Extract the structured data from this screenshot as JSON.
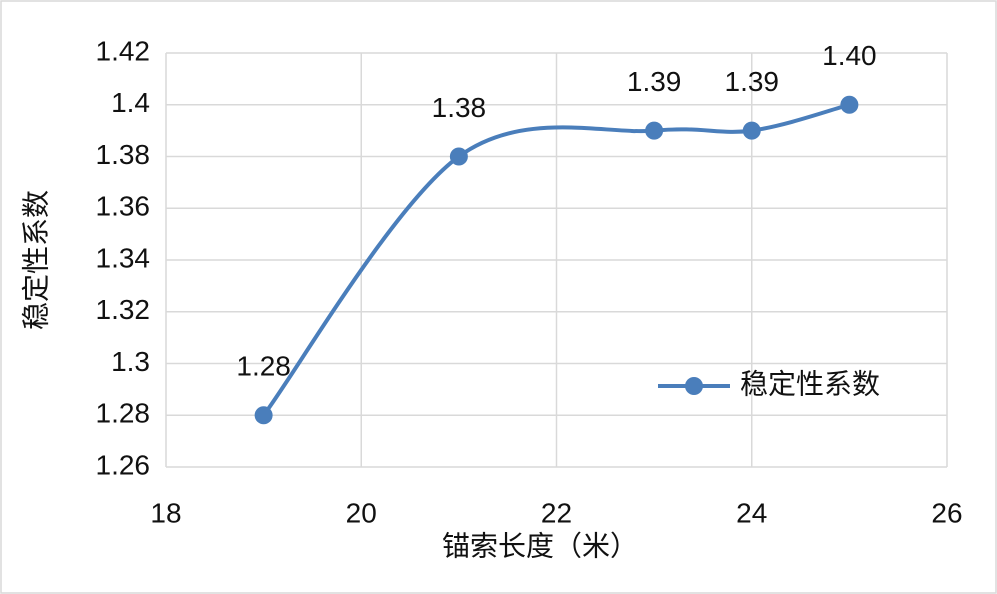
{
  "chart_data": {
    "type": "line",
    "smooth": true,
    "grid": true,
    "legend": "right",
    "x_label": "锚索长度（米）",
    "y_label": "稳定性系数",
    "x": [
      19,
      21,
      23,
      24,
      25
    ],
    "series": [
      {
        "name": "稳定性系数",
        "color": "#4a7ebb",
        "values": [
          1.28,
          1.38,
          1.39,
          1.39,
          1.4
        ],
        "value_labels": [
          "1.28",
          "1.38",
          "1.39",
          "1.39",
          "1.40"
        ]
      }
    ],
    "xlim": [
      18,
      26
    ],
    "xticks": [
      18,
      20,
      22,
      24,
      26
    ],
    "ylim": [
      1.26,
      1.42
    ],
    "yticks": [
      1.26,
      1.28,
      1.3,
      1.32,
      1.34,
      1.36,
      1.38,
      1.4,
      1.42
    ]
  }
}
